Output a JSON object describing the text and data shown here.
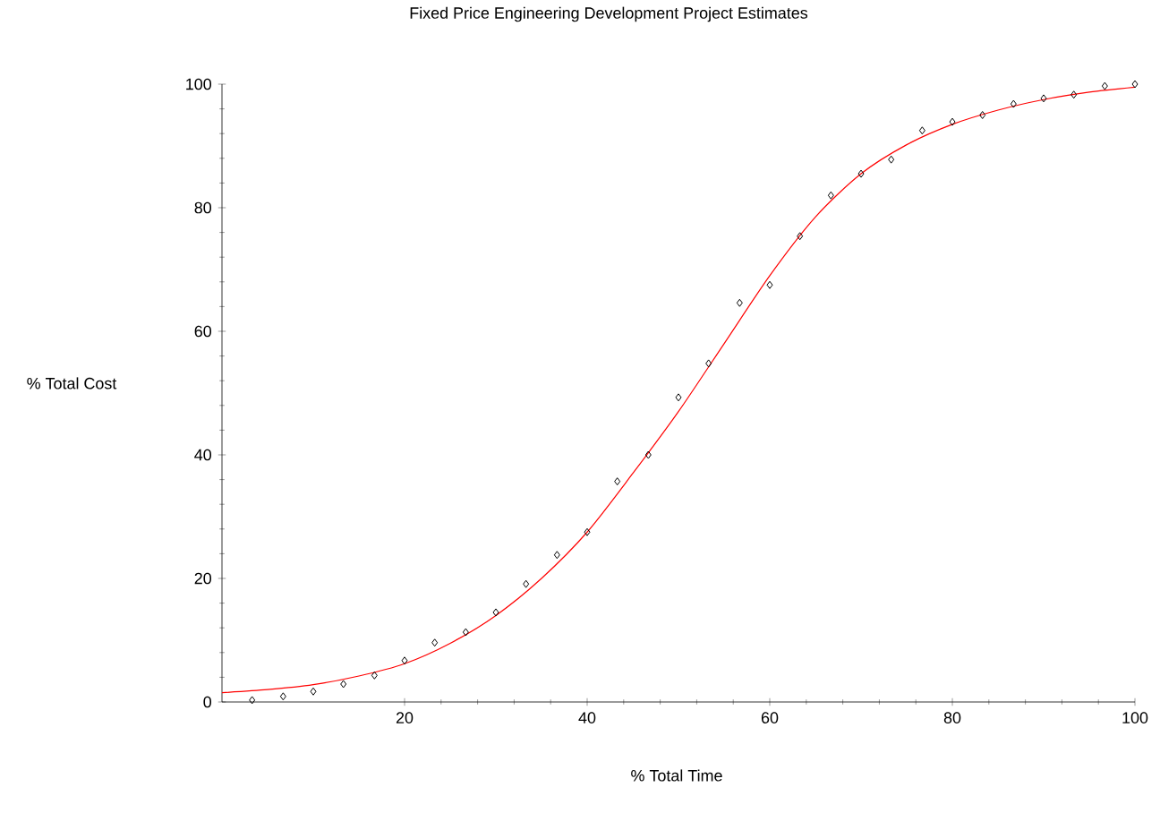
{
  "chart_data": {
    "type": "scatter",
    "title": "Fixed Price Engineering Development Project Estimates",
    "xlabel": "% Total Time",
    "ylabel": "% Total Cost",
    "xlim": [
      0,
      100
    ],
    "ylim": [
      0,
      100
    ],
    "xticks": [
      20,
      40,
      60,
      80,
      100
    ],
    "yticks": [
      0,
      20,
      40,
      60,
      80,
      100
    ],
    "series": [
      {
        "color": "#000000",
        "marker": "diamond",
        "x": [
          3.3,
          6.7,
          10,
          13.3,
          16.7,
          20,
          23.3,
          26.7,
          30,
          33.3,
          36.7,
          40,
          43.3,
          46.7,
          50,
          53.3,
          56.7,
          60,
          63.3,
          66.7,
          70,
          73.3,
          76.7,
          80,
          83.3,
          86.7,
          90,
          93.3,
          96.7,
          100
        ],
        "values": [
          0.3,
          0.9,
          1.7,
          2.9,
          4.3,
          6.7,
          9.6,
          11.3,
          14.5,
          19.1,
          23.8,
          27.5,
          35.7,
          40,
          49.3,
          54.8,
          64.6,
          67.5,
          75.4,
          82,
          85.5,
          87.8,
          92.5,
          93.9,
          95,
          96.8,
          97.7,
          98.3,
          99.7,
          100
        ]
      },
      {
        "type": "line",
        "color": "#ff0000",
        "marker": "none",
        "line_style": "solid",
        "x": [
          0,
          5,
          10,
          15,
          20,
          25,
          30,
          35,
          40,
          45,
          50,
          55,
          60,
          65,
          70,
          75,
          80,
          85,
          90,
          95,
          100
        ],
        "values": [
          1.5,
          2,
          2.8,
          4.2,
          6.2,
          9.5,
          14,
          20,
          27.5,
          37,
          47,
          58,
          69,
          78.5,
          85.5,
          90.2,
          93.5,
          95.8,
          97.5,
          98.7,
          99.5
        ]
      }
    ]
  }
}
